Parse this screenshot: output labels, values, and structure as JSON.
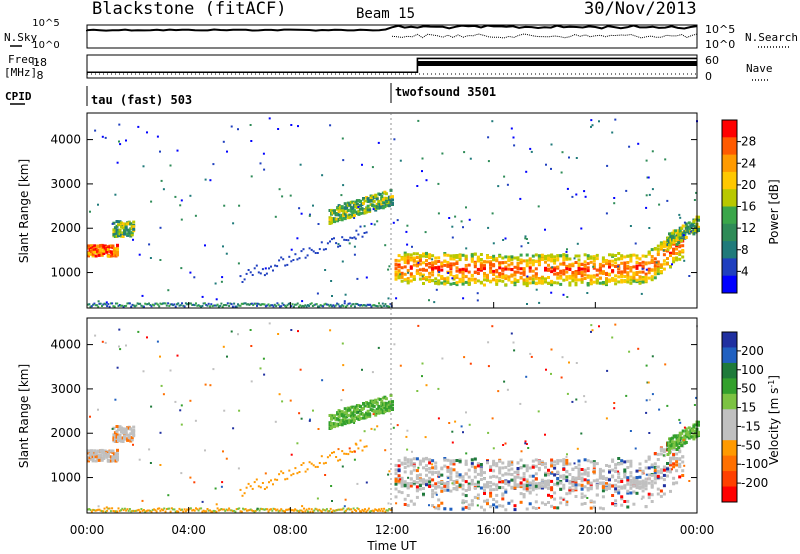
{
  "header": {
    "title": "Blackstone (fitACF)",
    "beam": "Beam 15",
    "date": "30/Nov/2013"
  },
  "side_labels": {
    "nsky": "N.Sky",
    "nsearch": "N.Search",
    "freq": "Freq.",
    "freq_unit": "[MHz]",
    "nave": "Nave",
    "cpid": "CPID"
  },
  "chart_data": [
    {
      "type": "line",
      "name": "noise",
      "series_labels": [
        "N.Sky",
        "N.Search"
      ],
      "y_ticks_left": [
        "10^5",
        "10^0"
      ],
      "y_ticks_right": [
        "10^5",
        "10^0"
      ],
      "description_values": {
        "nsky_before_12": "flat near top",
        "nsky_after_12": "slightly higher with spikes"
      }
    },
    {
      "type": "line",
      "name": "frequency / nave",
      "series_labels": [
        "Freq. [MHz]",
        "Nave"
      ],
      "y_ticks_left": [
        "18",
        "8"
      ],
      "y_ticks_right": [
        "60",
        "0"
      ],
      "freq_segments": [
        {
          "x": [
            "00:00",
            "13:00"
          ],
          "value": 10.5
        },
        {
          "x": [
            "13:00",
            "24:00"
          ],
          "value": 16.5
        }
      ]
    },
    {
      "type": "table",
      "name": "cpid",
      "segments": [
        {
          "start": "00:00",
          "label": "tau (fast) 503"
        },
        {
          "start": "12:00",
          "label": "twofsound 3501"
        }
      ]
    },
    {
      "type": "heatmap",
      "name": "power",
      "ylabel": "Slant Range [km]",
      "yticks": [
        "1000",
        "2000",
        "3000",
        "4000"
      ],
      "ylim": [
        200,
        4600
      ],
      "colorbar_label": "Power [dB]",
      "colorbar_ticks": [
        "28",
        "24",
        "20",
        "16",
        "12",
        "8",
        "4"
      ],
      "colorbar_colors": [
        "#ff0000",
        "#ff5a00",
        "#ff9a00",
        "#ffc800",
        "#b8c800",
        "#3aa64a",
        "#2e8b57",
        "#1f7a7a",
        "#1f3fbf",
        "#0000ff"
      ],
      "features": [
        {
          "t": [
            0.0,
            1.2
          ],
          "range": [
            1300,
            1800
          ],
          "level": "high"
        },
        {
          "t": [
            1.0,
            1.8
          ],
          "range": [
            1700,
            2400
          ],
          "level": "medium"
        },
        {
          "t": [
            9.5,
            12.0
          ],
          "range": [
            2000,
            2700
          ],
          "level": "medium"
        },
        {
          "t": [
            12.0,
            23.5
          ],
          "range": [
            800,
            1500
          ],
          "level": "high"
        },
        {
          "t": [
            22.8,
            24.0
          ],
          "range": [
            1400,
            2100
          ],
          "level": "medium"
        }
      ]
    },
    {
      "type": "heatmap",
      "name": "velocity",
      "ylabel": "Slant Range [km]",
      "yticks": [
        "1000",
        "2000",
        "3000",
        "4000"
      ],
      "ylim": [
        200,
        4600
      ],
      "colorbar_label": "Velocity [m s^-1]",
      "colorbar_ticks": [
        "200",
        "100",
        "50",
        "15",
        "-15",
        "-50",
        "-100",
        "-200"
      ],
      "colorbar_colors": [
        "#2030a0",
        "#2060c0",
        "#1e7a3a",
        "#33a02c",
        "#7cc242",
        "#c0c0c0",
        "#c0c0c0",
        "#ff9a00",
        "#ff7000",
        "#ff4000",
        "#ff0000"
      ],
      "xlabel": "Time UT",
      "xticks": [
        "00:00",
        "04:00",
        "08:00",
        "12:00",
        "16:00",
        "20:00",
        "00:00"
      ]
    }
  ]
}
